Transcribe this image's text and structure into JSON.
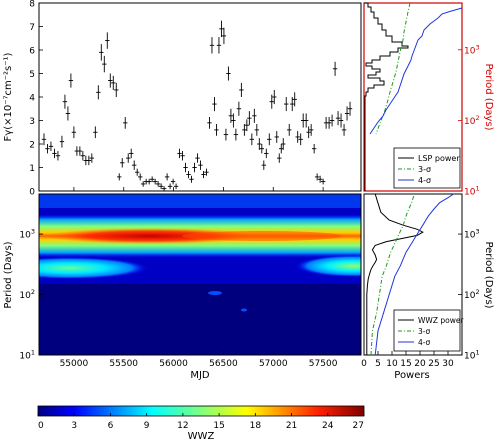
{
  "chart_data": [
    {
      "id": "light-curve",
      "type": "scatter",
      "ylabel": "Fγ(×10⁻⁷cm⁻²s⁻¹)",
      "xlim": [
        54650,
        57880
      ],
      "ylim": [
        0,
        8
      ],
      "yticks": [
        0,
        1,
        2,
        3,
        4,
        5,
        6,
        7,
        8
      ],
      "grid": false,
      "points": [
        [
          54700,
          2.2,
          0.25
        ],
        [
          54735,
          1.8,
          0.2
        ],
        [
          54770,
          1.9,
          0.2
        ],
        [
          54805,
          1.6,
          0.2
        ],
        [
          54840,
          1.5,
          0.2
        ],
        [
          54880,
          2.1,
          0.25
        ],
        [
          54910,
          3.8,
          0.3
        ],
        [
          54940,
          3.3,
          0.3
        ],
        [
          54970,
          4.7,
          0.3
        ],
        [
          55000,
          2.5,
          0.25
        ],
        [
          55030,
          1.7,
          0.2
        ],
        [
          55060,
          1.7,
          0.2
        ],
        [
          55090,
          1.5,
          0.2
        ],
        [
          55120,
          1.3,
          0.2
        ],
        [
          55150,
          1.3,
          0.2
        ],
        [
          55180,
          1.4,
          0.2
        ],
        [
          55215,
          2.5,
          0.25
        ],
        [
          55245,
          4.2,
          0.3
        ],
        [
          55275,
          5.9,
          0.35
        ],
        [
          55305,
          5.4,
          0.35
        ],
        [
          55335,
          6.4,
          0.35
        ],
        [
          55365,
          4.7,
          0.3
        ],
        [
          55395,
          4.6,
          0.3
        ],
        [
          55425,
          4.3,
          0.3
        ],
        [
          55455,
          0.6,
          0.15
        ],
        [
          55485,
          1.2,
          0.2
        ],
        [
          55515,
          2.9,
          0.25
        ],
        [
          55545,
          1.4,
          0.2
        ],
        [
          55575,
          1.6,
          0.2
        ],
        [
          55605,
          1.1,
          0.2
        ],
        [
          55635,
          0.8,
          0.15
        ],
        [
          55665,
          0.6,
          0.15
        ],
        [
          55695,
          0.3,
          0.12
        ],
        [
          55725,
          0.4,
          0.12
        ],
        [
          55755,
          0.4,
          0.12
        ],
        [
          55785,
          0.5,
          0.12
        ],
        [
          55815,
          0.4,
          0.12
        ],
        [
          55845,
          0.3,
          0.12
        ],
        [
          55875,
          0.2,
          0.12
        ],
        [
          55905,
          0.1,
          0.1
        ],
        [
          55935,
          0.6,
          0.15
        ],
        [
          55965,
          0.2,
          0.12
        ],
        [
          55995,
          0.4,
          0.12
        ],
        [
          56025,
          0.2,
          0.12
        ],
        [
          56060,
          1.6,
          0.2
        ],
        [
          56090,
          1.5,
          0.2
        ],
        [
          56120,
          1.0,
          0.2
        ],
        [
          56150,
          0.7,
          0.15
        ],
        [
          56180,
          0.5,
          0.15
        ],
        [
          56210,
          1.0,
          0.2
        ],
        [
          56240,
          1.4,
          0.2
        ],
        [
          56270,
          1.1,
          0.2
        ],
        [
          56300,
          0.7,
          0.15
        ],
        [
          56330,
          0.8,
          0.15
        ],
        [
          56360,
          2.9,
          0.25
        ],
        [
          56385,
          6.2,
          0.35
        ],
        [
          56410,
          3.7,
          0.3
        ],
        [
          56430,
          2.6,
          0.25
        ],
        [
          56455,
          6.2,
          0.35
        ],
        [
          56480,
          6.9,
          0.35
        ],
        [
          56505,
          6.6,
          0.35
        ],
        [
          56525,
          2.4,
          0.25
        ],
        [
          56550,
          5.0,
          0.3
        ],
        [
          56575,
          3.2,
          0.3
        ],
        [
          56600,
          3.0,
          0.3
        ],
        [
          56625,
          2.4,
          0.25
        ],
        [
          56655,
          3.5,
          0.3
        ],
        [
          56680,
          4.3,
          0.3
        ],
        [
          56710,
          2.6,
          0.25
        ],
        [
          56735,
          2.8,
          0.25
        ],
        [
          56760,
          3.1,
          0.3
        ],
        [
          56785,
          2.2,
          0.25
        ],
        [
          56810,
          3.2,
          0.3
        ],
        [
          56835,
          2.6,
          0.25
        ],
        [
          56860,
          2.0,
          0.25
        ],
        [
          56885,
          1.8,
          0.2
        ],
        [
          56905,
          1.1,
          0.2
        ],
        [
          56930,
          1.6,
          0.2
        ],
        [
          56960,
          2.2,
          0.25
        ],
        [
          56985,
          3.8,
          0.3
        ],
        [
          57010,
          4.0,
          0.3
        ],
        [
          57035,
          2.3,
          0.25
        ],
        [
          57060,
          1.4,
          0.2
        ],
        [
          57080,
          1.8,
          0.2
        ],
        [
          57100,
          2.0,
          0.25
        ],
        [
          57130,
          3.7,
          0.3
        ],
        [
          57160,
          2.6,
          0.25
        ],
        [
          57190,
          3.7,
          0.3
        ],
        [
          57215,
          3.9,
          0.3
        ],
        [
          57245,
          2.3,
          0.25
        ],
        [
          57275,
          2.2,
          0.25
        ],
        [
          57300,
          3.0,
          0.3
        ],
        [
          57330,
          3.0,
          0.3
        ],
        [
          57355,
          2.5,
          0.25
        ],
        [
          57380,
          2.6,
          0.25
        ],
        [
          57410,
          1.8,
          0.2
        ],
        [
          57440,
          0.6,
          0.15
        ],
        [
          57470,
          0.5,
          0.15
        ],
        [
          57500,
          0.4,
          0.12
        ],
        [
          57530,
          2.9,
          0.25
        ],
        [
          57560,
          2.9,
          0.25
        ],
        [
          57590,
          3.0,
          0.25
        ],
        [
          57620,
          5.2,
          0.3
        ],
        [
          57650,
          3.1,
          0.3
        ],
        [
          57680,
          3.0,
          0.3
        ],
        [
          57710,
          2.6,
          0.25
        ],
        [
          57740,
          3.3,
          0.3
        ],
        [
          57770,
          3.5,
          0.3
        ]
      ]
    },
    {
      "id": "lsp",
      "type": "line",
      "ylabel": "Period (Days)",
      "ylog": true,
      "ylim": [
        10,
        4600
      ],
      "yticks": [
        10,
        100,
        1000
      ],
      "series": [
        {
          "name": "LSP power",
          "color": "#000000",
          "style": "solid"
        },
        {
          "name": "3-σ",
          "color": "#1a9a1a",
          "style": "dashdot"
        },
        {
          "name": "4-σ",
          "color": "#1f35e0",
          "style": "solid"
        }
      ],
      "legend_loc": "lower-right"
    },
    {
      "id": "wwz-map",
      "type": "heatmap",
      "xlabel": "MJD",
      "ylabel": "Period (Days)",
      "xlim": [
        54650,
        57880
      ],
      "xticks": [
        55000,
        55500,
        56000,
        56500,
        57000,
        57500
      ],
      "ylog": true,
      "ylim": [
        10,
        4600
      ],
      "yticks": [
        10,
        100,
        1000
      ],
      "features": [
        {
          "period": 1100,
          "mjd_range": [
            54650,
            57880
          ],
          "peak_wwz": 26,
          "note": "dominant band"
        },
        {
          "period": 390,
          "mjd_range": [
            54650,
            55350
          ],
          "peak_wwz": 11
        },
        {
          "period": 400,
          "mjd_range": [
            57100,
            57880
          ],
          "peak_wwz": 12
        }
      ],
      "colorbar": {
        "label": "WWZ",
        "min": 0,
        "max": 27,
        "ticks": [
          0,
          3,
          6,
          9,
          12,
          15,
          18,
          21,
          24,
          27
        ],
        "colors": [
          "#00007f",
          "#0000ff",
          "#007fff",
          "#00ffff",
          "#7fff7f",
          "#ffff00",
          "#ff7f00",
          "#ff0000",
          "#7f0000"
        ]
      }
    },
    {
      "id": "wwz-power",
      "type": "line",
      "xlabel": "Powers",
      "ylabel": "Period (Days)",
      "xlim": [
        0,
        35
      ],
      "xticks": [
        0,
        5,
        10,
        15,
        20,
        25,
        30
      ],
      "ylog": true,
      "ylim": [
        10,
        4600
      ],
      "yticks": [
        10,
        100,
        1000
      ],
      "series": [
        {
          "name": "WWZ power",
          "color": "#000000",
          "style": "solid",
          "x": [
            1,
            1,
            1,
            1,
            1,
            1.2,
            1.5,
            2,
            2.5,
            3.2,
            4,
            4.5,
            4,
            3,
            4,
            8,
            14,
            19,
            21,
            19,
            14,
            9,
            6,
            4
          ],
          "y": [
            10,
            20,
            40,
            70,
            100,
            140,
            180,
            220,
            260,
            300,
            340,
            380,
            450,
            550,
            650,
            750,
            850,
            950,
            1080,
            1200,
            1400,
            1700,
            2300,
            4600
          ]
        },
        {
          "name": "3-σ",
          "color": "#1a9a1a",
          "style": "dashdot",
          "x": [
            2.5,
            3,
            4.5,
            5.5,
            6.5,
            8,
            9.5,
            11,
            12.5,
            14,
            15,
            16,
            17,
            18
          ],
          "y": [
            10,
            25,
            50,
            100,
            200,
            300,
            500,
            700,
            1000,
            1400,
            2000,
            2600,
            3300,
            4600
          ]
        },
        {
          "name": "4-σ",
          "color": "#1f35e0",
          "style": "solid",
          "x": [
            4,
            5,
            7,
            9,
            11,
            13,
            15,
            17,
            19,
            21,
            23,
            25,
            27,
            30,
            32
          ],
          "y": [
            10,
            25,
            50,
            100,
            200,
            300,
            500,
            700,
            1000,
            1400,
            2000,
            2600,
            3300,
            4000,
            4600
          ]
        }
      ],
      "legend_loc": "lower-right"
    }
  ]
}
